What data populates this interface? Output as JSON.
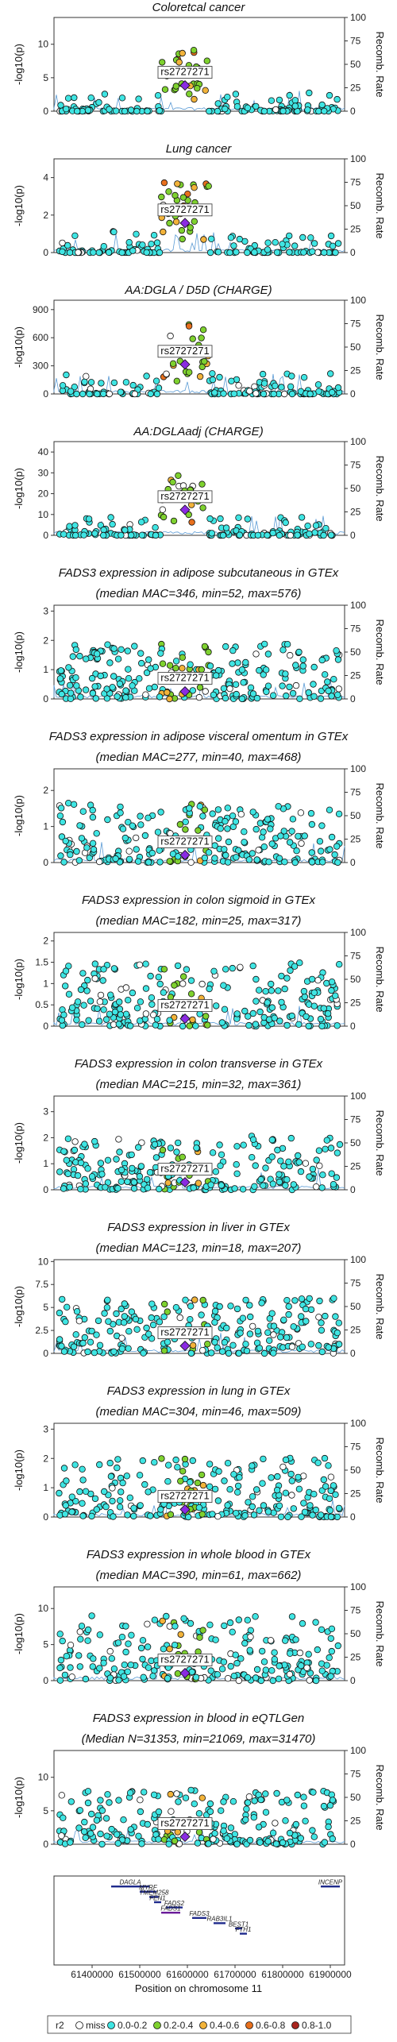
{
  "figure": {
    "x_axis_label": "Position on chromosome 11",
    "x_ticks": [
      61400000,
      61500000,
      61600000,
      61700000,
      61800000,
      61900000
    ],
    "x_range": [
      61320000,
      61930000
    ],
    "y_axis_label": "-log10(p)",
    "y2_axis_label": "Recomb. Rate",
    "y2_ticks": [
      0,
      25,
      50,
      75,
      100
    ],
    "lead_snp_label": "rs2727271",
    "lead_snp_position": 61595000
  },
  "legend": {
    "title": "r2",
    "items": [
      {
        "label": "miss",
        "color": "#ffffff"
      },
      {
        "label": "0.0-0.2",
        "color": "#3fe5e3"
      },
      {
        "label": "0.2-0.4",
        "color": "#7ed12f"
      },
      {
        "label": "0.4-0.6",
        "color": "#f2b33a"
      },
      {
        "label": "0.6-0.8",
        "color": "#e8701d"
      },
      {
        "label": "0.8-1.0",
        "color": "#a8251e"
      }
    ]
  },
  "genes": [
    {
      "name": "DAGLA",
      "start": 61440000,
      "end": 61520000,
      "row": 0,
      "color": "#1f2a8c"
    },
    {
      "name": "MYRF",
      "start": 61500000,
      "end": 61535000,
      "row": 1,
      "color": "#1f2a8c"
    },
    {
      "name": "TMEM258",
      "start": 61520000,
      "end": 61540000,
      "row": 2,
      "color": "#1f2a8c"
    },
    {
      "name": "FEN1",
      "start": 61530000,
      "end": 61545000,
      "row": 3,
      "color": "#1f2a8c"
    },
    {
      "name": "FADS2",
      "start": 61555000,
      "end": 61590000,
      "row": 4,
      "color": "#1f2a8c"
    },
    {
      "name": "FADS1",
      "start": 61545000,
      "end": 61585000,
      "row": 5,
      "color": "#6a1b9a"
    },
    {
      "name": "FADS3",
      "start": 61610000,
      "end": 61640000,
      "row": 6,
      "color": "#1f2a8c"
    },
    {
      "name": "RAB3IL1",
      "start": 61655000,
      "end": 61680000,
      "row": 7,
      "color": "#1f2a8c"
    },
    {
      "name": "BEST1",
      "start": 61700000,
      "end": 61715000,
      "row": 8,
      "color": "#1f2a8c"
    },
    {
      "name": "FTH1",
      "start": 61710000,
      "end": 61725000,
      "row": 9,
      "color": "#1f2a8c"
    },
    {
      "name": "INCENP",
      "start": 61880000,
      "end": 61920000,
      "row": 0,
      "color": "#1f2a8c"
    }
  ],
  "chart_data": [
    {
      "type": "scatter",
      "title": "Coloretcal cancer",
      "subtitle": "",
      "ylim": [
        0,
        14
      ],
      "yticks": [
        0,
        5,
        10
      ],
      "peak": 11
    },
    {
      "type": "scatter",
      "title": "Lung cancer",
      "subtitle": "",
      "ylim": [
        0,
        5
      ],
      "yticks": [
        0,
        2,
        4
      ],
      "peak": 4.5
    },
    {
      "type": "scatter",
      "title": "AA:DGLA / D5D (CHARGE)",
      "subtitle": "",
      "ylim": [
        0,
        1000
      ],
      "yticks": [
        0,
        300,
        600,
        900
      ],
      "peak": 900
    },
    {
      "type": "scatter",
      "title": "AA:DGLAadj (CHARGE)",
      "subtitle": "",
      "ylim": [
        0,
        45
      ],
      "yticks": [
        0,
        10,
        20,
        30,
        40
      ],
      "peak": 35
    },
    {
      "type": "scatter",
      "title": "FADS3 expression in adipose subcutaneous in GTEx",
      "subtitle": "(median MAC=346, min=52, max=576)",
      "ylim": [
        0,
        3.2
      ],
      "yticks": [
        0,
        1,
        2,
        3
      ],
      "peak": 2.5
    },
    {
      "type": "scatter",
      "title": "FADS3 expression in adipose visceral omentum in GTEx",
      "subtitle": "(median MAC=277, min=40, max=468)",
      "ylim": [
        0,
        2.6
      ],
      "yticks": [
        0,
        1,
        2
      ],
      "peak": 2.2
    },
    {
      "type": "scatter",
      "title": "FADS3 expression in colon sigmoid in GTEx",
      "subtitle": "(median MAC=182, min=25, max=317)",
      "ylim": [
        0,
        2.2
      ],
      "yticks": [
        0,
        0.5,
        1,
        1.5,
        2
      ],
      "peak": 2.0
    },
    {
      "type": "scatter",
      "title": "FADS3 expression in colon transverse in GTEx",
      "subtitle": "(median MAC=215, min=32, max=361)",
      "ylim": [
        0,
        3.6
      ],
      "yticks": [
        0,
        1,
        2,
        3
      ],
      "peak": 2.8
    },
    {
      "type": "scatter",
      "title": "FADS3 expression in liver in GTEx",
      "subtitle": "(median MAC=123, min=18, max=207)",
      "ylim": [
        0,
        10.2
      ],
      "yticks": [
        0,
        2.5,
        5,
        7.5,
        10
      ],
      "peak": 8
    },
    {
      "type": "scatter",
      "title": "FADS3 expression in lung in GTEx",
      "subtitle": "(median MAC=304, min=46, max=509)",
      "ylim": [
        0,
        3.2
      ],
      "yticks": [
        0,
        1,
        2,
        3
      ],
      "peak": 2.7
    },
    {
      "type": "scatter",
      "title": "FADS3 expression in whole blood in GTEx",
      "subtitle": "(median MAC=390, min=61, max=662)",
      "ylim": [
        0,
        13
      ],
      "yticks": [
        0,
        5,
        10
      ],
      "peak": 12
    },
    {
      "type": "scatter",
      "title": "FADS3 expression in blood in eQTLGen",
      "subtitle": "(Median N=31353, min=21069, max=31470)",
      "ylim": [
        0,
        14
      ],
      "yticks": [
        0,
        5,
        10
      ],
      "peak": 11
    }
  ]
}
